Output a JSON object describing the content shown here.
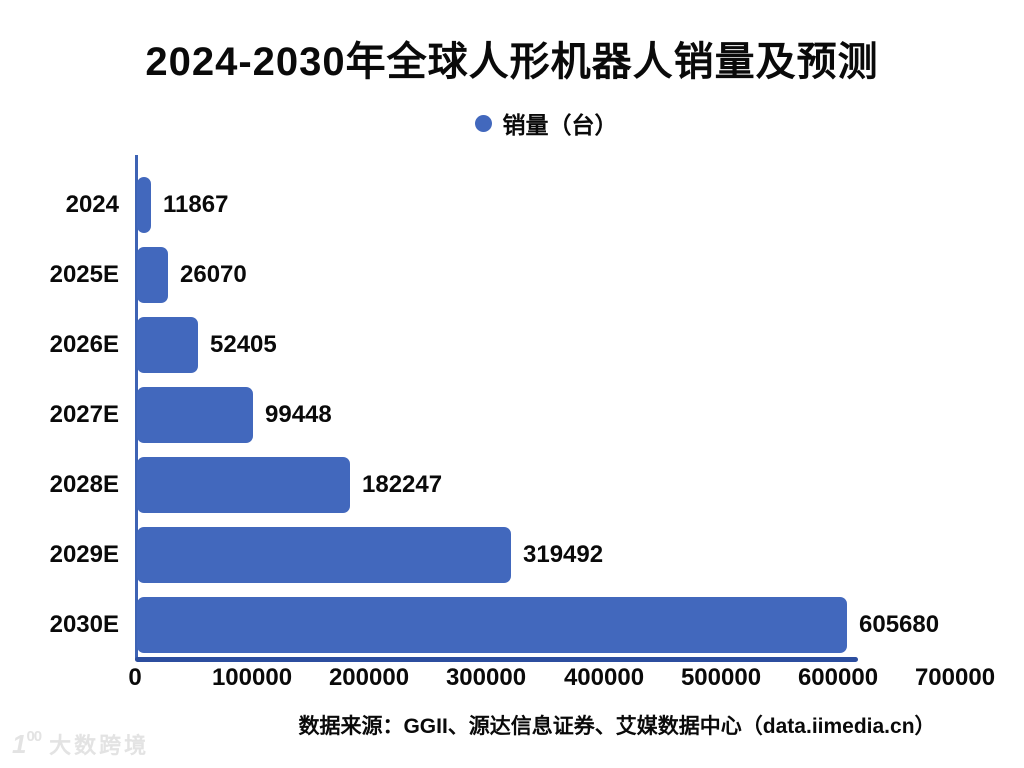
{
  "title": "2024-2030年全球人形机器人销量及预测",
  "legend": {
    "label": "销量（台）",
    "marker_color": "#4268bd"
  },
  "chart_data": {
    "type": "bar",
    "orientation": "horizontal",
    "title": "2024-2030年全球人形机器人销量及预测",
    "series_name": "销量（台）",
    "categories": [
      "2024",
      "2025E",
      "2026E",
      "2027E",
      "2028E",
      "2029E",
      "2030E"
    ],
    "values": [
      11867,
      26070,
      52405,
      99448,
      182247,
      319492,
      605680
    ],
    "value_labels_shown": true,
    "xlim": [
      0,
      700000
    ],
    "x_ticks": [
      "0",
      "100000",
      "200000",
      "300000",
      "400000",
      "500000",
      "600000",
      "700000"
    ],
    "grid": false,
    "legend_position": "top-center",
    "bar_color": "#4268bd",
    "y_axis_color": "#3e63b4",
    "x_axis_color": "#2c4e9f"
  },
  "source_note": "数据来源：GGII、源达信息证券、艾媒数据中心（data.iimedia.cn）",
  "watermark": {
    "logo": "1",
    "logo_sup": "00",
    "text": "大数跨境"
  }
}
